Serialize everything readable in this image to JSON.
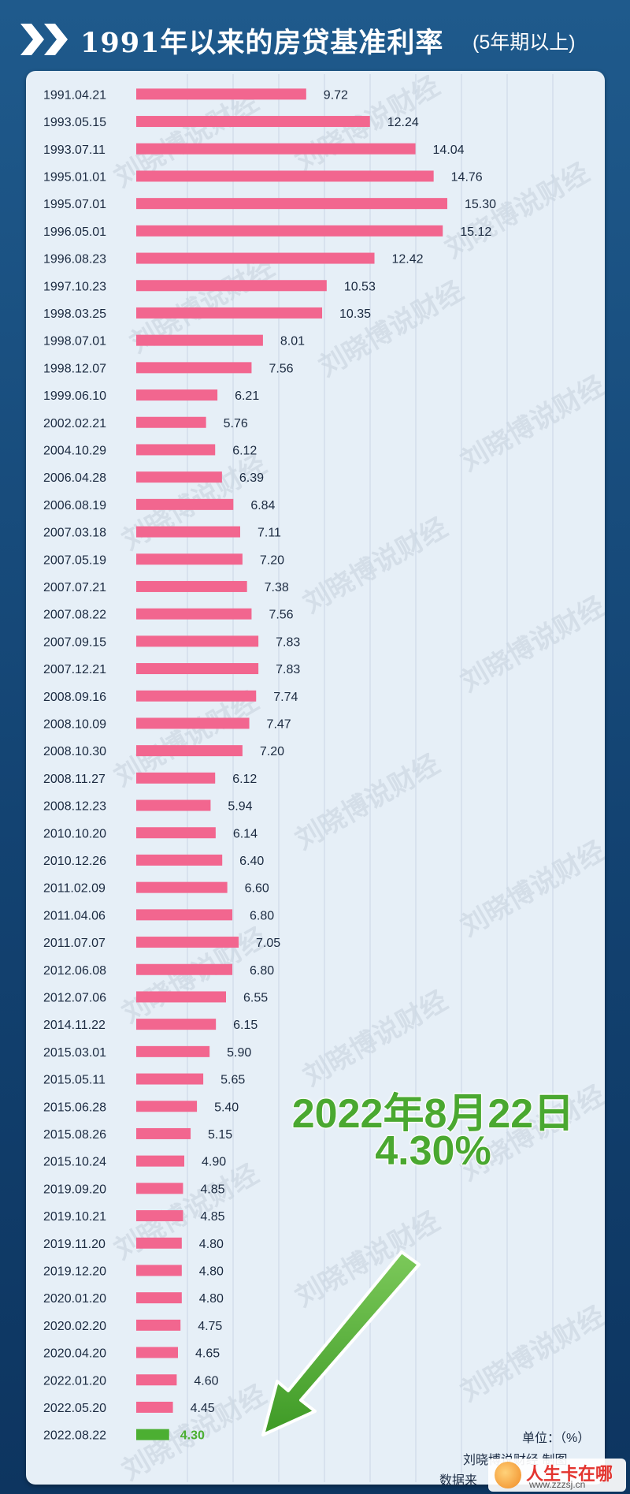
{
  "header": {
    "title": "1991年以来的房贷基准利率",
    "subtitle": "(5年期以上)"
  },
  "chart_data": {
    "type": "bar",
    "orientation": "horizontal",
    "categories": [
      "1991.04.21",
      "1993.05.15",
      "1993.07.11",
      "1995.01.01",
      "1995.07.01",
      "1996.05.01",
      "1996.08.23",
      "1997.10.23",
      "1998.03.25",
      "1998.07.01",
      "1998.12.07",
      "1999.06.10",
      "2002.02.21",
      "2004.10.29",
      "2006.04.28",
      "2006.08.19",
      "2007.03.18",
      "2007.05.19",
      "2007.07.21",
      "2007.08.22",
      "2007.09.15",
      "2007.12.21",
      "2008.09.16",
      "2008.10.09",
      "2008.10.30",
      "2008.11.27",
      "2008.12.23",
      "2010.10.20",
      "2010.12.26",
      "2011.02.09",
      "2011.04.06",
      "2011.07.07",
      "2012.06.08",
      "2012.07.06",
      "2014.11.22",
      "2015.03.01",
      "2015.05.11",
      "2015.06.28",
      "2015.08.26",
      "2015.10.24",
      "2019.09.20",
      "2019.10.21",
      "2019.11.20",
      "2019.12.20",
      "2020.01.20",
      "2020.02.20",
      "2020.04.20",
      "2022.01.20",
      "2022.05.20",
      "2022.08.22"
    ],
    "values": [
      9.72,
      12.24,
      14.04,
      14.76,
      15.3,
      15.12,
      12.42,
      10.53,
      10.35,
      8.01,
      7.56,
      6.21,
      5.76,
      6.12,
      6.39,
      6.84,
      7.11,
      7.2,
      7.38,
      7.56,
      7.83,
      7.83,
      7.74,
      7.47,
      7.2,
      6.12,
      5.94,
      6.14,
      6.4,
      6.6,
      6.8,
      7.05,
      6.8,
      6.55,
      6.15,
      5.9,
      5.65,
      5.4,
      5.15,
      4.9,
      4.85,
      4.85,
      4.8,
      4.8,
      4.8,
      4.75,
      4.65,
      4.6,
      4.45,
      4.3
    ],
    "value_labels": [
      "9.72",
      "12.24",
      "14.04",
      "14.76",
      "15.30",
      "15.12",
      "12.42",
      "10.53",
      "10.35",
      "8.01",
      "7.56",
      "6.21",
      "5.76",
      "6.12",
      "6.39",
      "6.84",
      "7.11",
      "7.20",
      "7.38",
      "7.56",
      "7.83",
      "7.83",
      "7.74",
      "7.47",
      "7.20",
      "6.12",
      "5.94",
      "6.14",
      "6.40",
      "6.60",
      "6.80",
      "7.05",
      "6.80",
      "6.55",
      "6.15",
      "5.90",
      "5.65",
      "5.40",
      "5.15",
      "4.90",
      "4.85",
      "4.85",
      "4.80",
      "4.80",
      "4.80",
      "4.75",
      "4.65",
      "4.60",
      "4.45",
      "4.30"
    ],
    "highlight_index": 49,
    "bar_color": "#f2668f",
    "highlight_color": "#4caf32",
    "grid": true,
    "xlim": [
      3,
      15.5
    ]
  },
  "callout": {
    "date": "2022年8月22日",
    "rate": "4.30%"
  },
  "notes": {
    "unit": "单位：（%）",
    "maker": "刘晓博说财经 制图",
    "source": "数据来"
  },
  "watermark": "刘晓博说财经",
  "site_logo": {
    "name": "人生卡在哪",
    "url": "www.zzzsj.cn"
  },
  "colors": {
    "background": "#134372",
    "panel": "#e6eff7",
    "title": "#ffffff"
  }
}
